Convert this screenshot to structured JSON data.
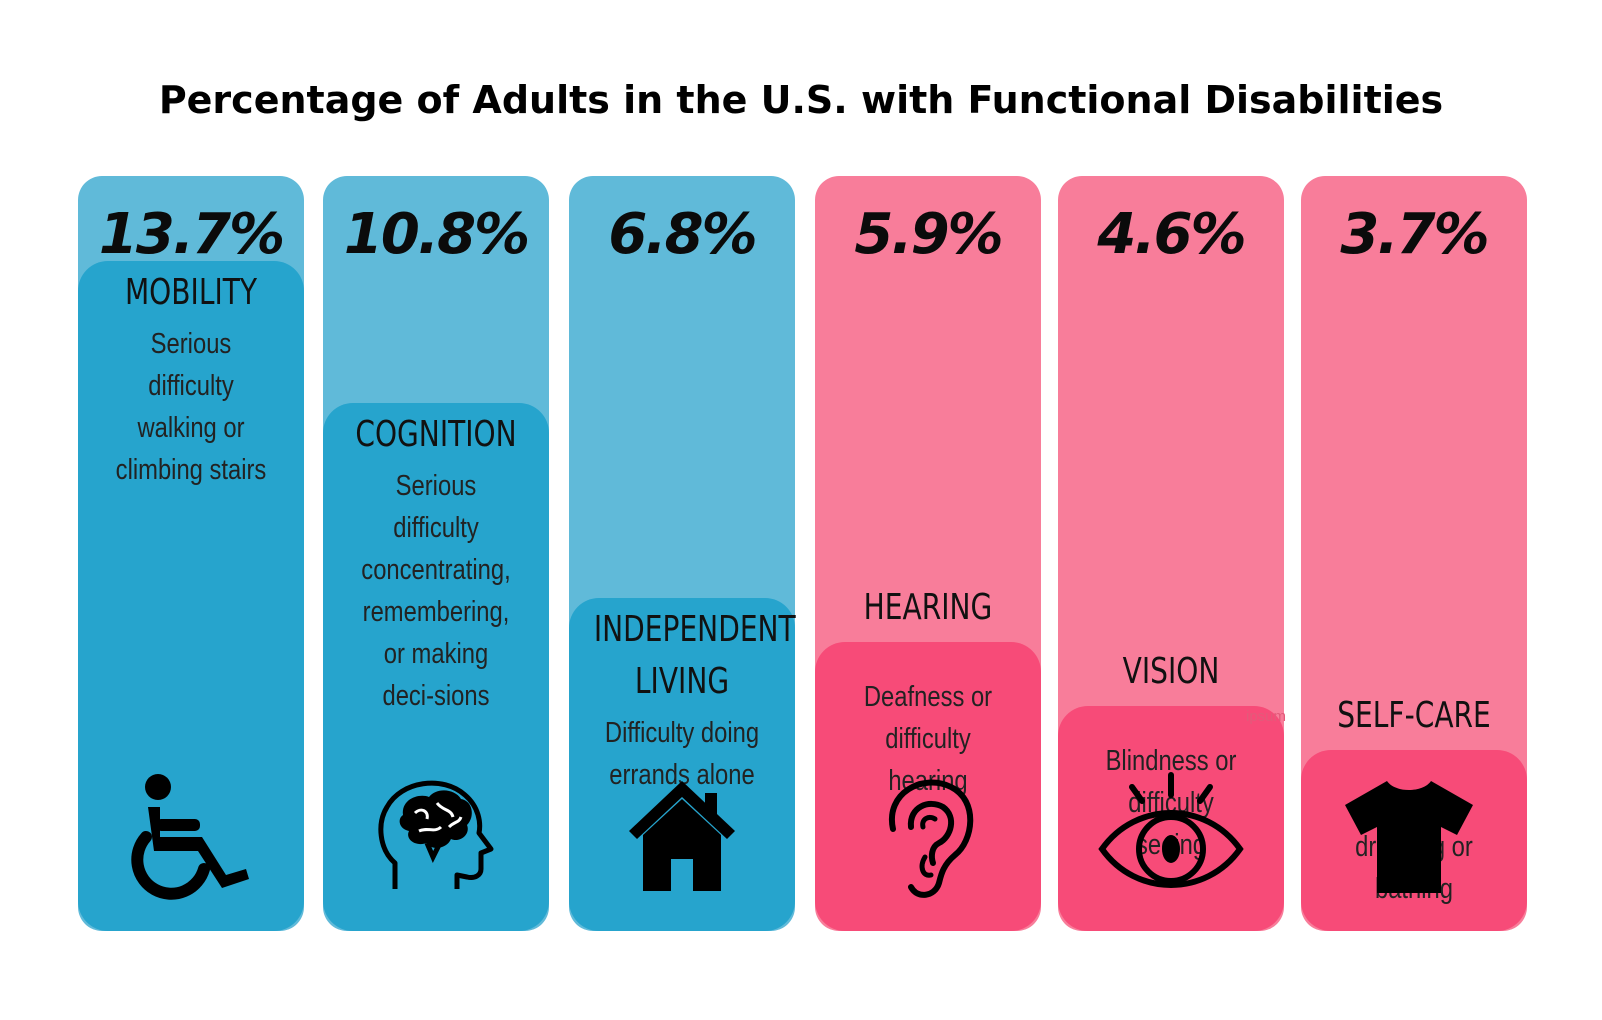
{
  "chart_data": {
    "type": "bar",
    "title": "Percentage of Adults in the U.S. with Functional Disabilities",
    "xlabel": "",
    "ylabel": "",
    "categories": [
      "MOBILITY",
      "COGNITION",
      "INDEPENDENT LIVING",
      "HEARING",
      "VISION",
      "SELF-CARE"
    ],
    "values": [
      13.7,
      10.8,
      6.8,
      5.9,
      4.6,
      3.7
    ],
    "value_labels": [
      "13.7%",
      "10.8%",
      "6.8%",
      "5.9%",
      "4.6%",
      "3.7%"
    ],
    "descriptions": [
      "Serious difficulty walking or climbing stairs",
      "Serious difficulty concentrating, remembering, or making deci-sions",
      "Difficulty doing errands alone",
      "Deafness or difficulty hearing",
      "Blindness or difficulty seeing",
      "Difficulty dressing or bathing"
    ],
    "icons": [
      "wheelchair-icon",
      "brain-head-icon",
      "house-icon",
      "ear-icon",
      "eye-icon",
      "tshirt-icon"
    ],
    "colors": {
      "blue_outer": "#60BAD9",
      "blue_inner": "#26A4CD",
      "pink_outer": "#F87D9A",
      "pink_inner": "#F74B78"
    },
    "watermark": "ipsum"
  }
}
